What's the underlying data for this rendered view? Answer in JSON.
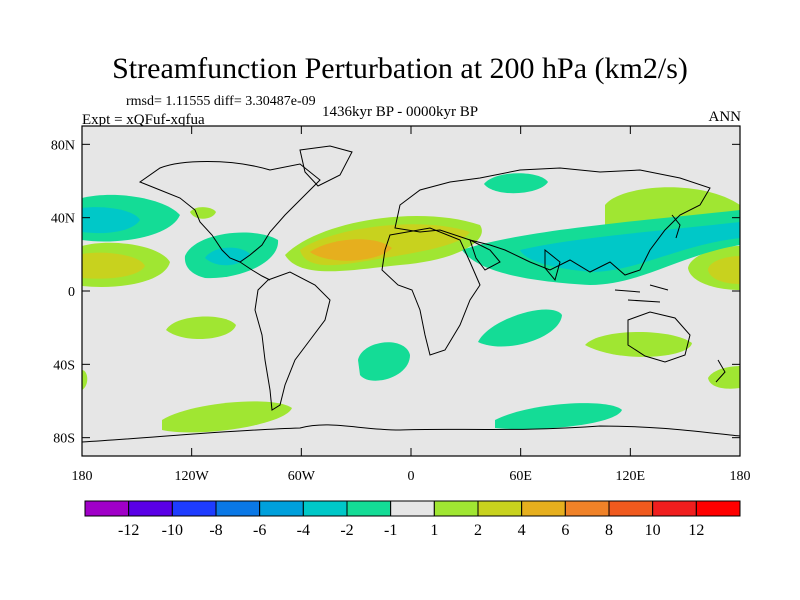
{
  "title": "Streamfunction Perturbation at 200 hPa (km2/s)",
  "stats": "rmsd= 1.11555 diff= 3.30487e-09",
  "period": "1436kyr BP - 0000kyr BP",
  "experiment": "Expt = xQFuf-xqfua",
  "season": "ANN",
  "map": {
    "lat_range": [
      -90,
      90
    ],
    "lon_range": [
      -180,
      180
    ],
    "lat_ticks": [
      "80N",
      "40N",
      "0",
      "40S",
      "80S"
    ],
    "lat_tick_values": [
      80,
      40,
      0,
      -40,
      -80
    ],
    "lon_ticks": [
      "180",
      "120W",
      "60W",
      "0",
      "60E",
      "120E",
      "180"
    ],
    "lon_tick_values": [
      -180,
      -120,
      -60,
      0,
      60,
      120,
      180
    ],
    "background_color": "#e6e6e6"
  },
  "colorbar": {
    "labels": [
      "-12",
      "-10",
      "-8",
      "-6",
      "-4",
      "-2",
      "-1",
      "1",
      "2",
      "4",
      "6",
      "8",
      "10",
      "12"
    ],
    "colors": [
      "#a000c8",
      "#5a00e6",
      "#1e3cff",
      "#0a78e6",
      "#00a0dc",
      "#00c8c8",
      "#14dc96",
      "#e6e6e6",
      "#a0e632",
      "#c8d21e",
      "#e6af1e",
      "#f08228",
      "#f05a1e",
      "#f01e1e",
      "#ff0000"
    ]
  }
}
